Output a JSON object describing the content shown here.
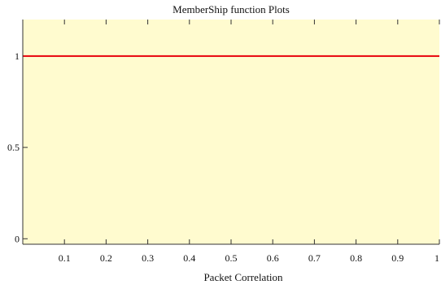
{
  "chart_data": {
    "type": "line",
    "title": "MemberShip function  Plots",
    "xlabel": "Packet Correlation",
    "ylabel": "",
    "xlim": [
      0.0,
      1.0
    ],
    "ylim": [
      -0.03,
      1.2
    ],
    "x_ticks": [
      0.1,
      0.2,
      0.3,
      0.4,
      0.5,
      0.6,
      0.7,
      0.8,
      0.9,
      1
    ],
    "x_tick_labels": [
      "0.1",
      "0.2",
      "0.3",
      "0.4",
      "0.5",
      "0.6",
      "0.7",
      "0.8",
      "0.9",
      "1"
    ],
    "y_ticks": [
      0,
      0.5,
      1
    ],
    "y_tick_labels": [
      "0",
      "0.5",
      "1"
    ],
    "grid": false,
    "series": [
      {
        "x": [
          0.0,
          1.0
        ],
        "y": [
          1,
          1
        ]
      }
    ],
    "colors": {
      "plot_background": "#fffbcf",
      "line": "#e8000b",
      "axis": "#333333"
    }
  }
}
